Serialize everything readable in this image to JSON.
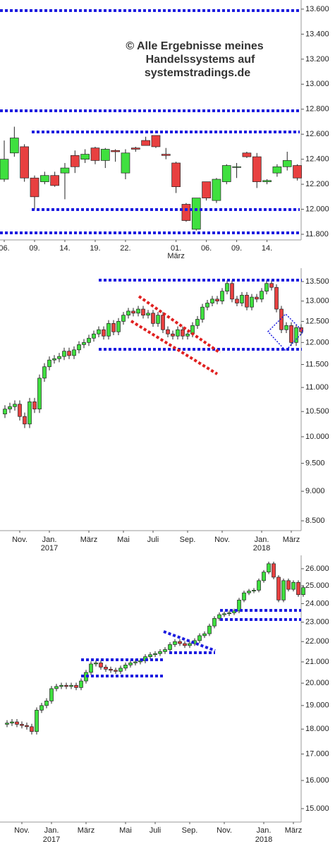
{
  "chart_data": [
    {
      "type": "candlestick",
      "watermark": [
        "© Alle Ergebnisse meines",
        "Handelssystems auf",
        "systemstradings.de"
      ],
      "categories": [
        "06.",
        null,
        null,
        "09.",
        null,
        null,
        "14.",
        null,
        null,
        "19.",
        null,
        null,
        "22.",
        null,
        null,
        null,
        null,
        "01.",
        null,
        null,
        "06.",
        null,
        null,
        "09.",
        null,
        null,
        "14.",
        null,
        null,
        null
      ],
      "sublabels": [
        null,
        null,
        null,
        null,
        null,
        null,
        null,
        null,
        null,
        null,
        null,
        null,
        null,
        null,
        null,
        null,
        null,
        "März",
        null,
        null,
        null,
        null,
        null,
        null,
        null,
        null,
        null,
        null,
        null,
        null
      ],
      "open": [
        12240,
        12450,
        12500,
        12250,
        12220,
        12270,
        12290,
        12430,
        12400,
        12490,
        12390,
        12470,
        12290,
        12490,
        12550,
        12590,
        12440,
        12370,
        12040,
        11840,
        12220,
        12070,
        12220,
        12340,
        12450,
        12420,
        12220,
        12290,
        12340,
        12350
      ],
      "high": [
        12550,
        12660,
        12520,
        12270,
        12300,
        12300,
        12370,
        12470,
        12480,
        12500,
        12490,
        12480,
        12480,
        12500,
        12580,
        12590,
        12490,
        12380,
        12050,
        12090,
        12220,
        12250,
        12360,
        12370,
        12460,
        12450,
        12240,
        12360,
        12460,
        12360
      ],
      "low": [
        12220,
        12420,
        12220,
        12000,
        12200,
        12180,
        12080,
        12290,
        12370,
        12360,
        12330,
        12380,
        12240,
        12460,
        12520,
        12490,
        12400,
        12130,
        11900,
        11830,
        12070,
        12050,
        12200,
        12250,
        12410,
        12170,
        12200,
        12260,
        12310,
        12230
      ],
      "close": [
        12400,
        12570,
        12250,
        12100,
        12270,
        12190,
        12330,
        12340,
        12440,
        12390,
        12480,
        12460,
        12450,
        12480,
        12510,
        12500,
        12430,
        12180,
        11910,
        12090,
        12090,
        12240,
        12350,
        12340,
        12420,
        12220,
        12230,
        12340,
        12390,
        12250
      ],
      "colors": {
        "up": "#3fe03f",
        "down": "#e84040"
      },
      "log_scale": false,
      "ylim": [
        11755,
        13673
      ],
      "yticks": [
        {
          "value": 11800,
          "label": "11.800"
        },
        {
          "value": 12000,
          "label": "12.000"
        },
        {
          "value": 12200,
          "label": "12.200"
        },
        {
          "value": 12400,
          "label": "12.400"
        },
        {
          "value": 12600,
          "label": "12.600"
        },
        {
          "value": 12800,
          "label": "12.800"
        },
        {
          "value": 13000,
          "label": "13.000"
        },
        {
          "value": 13200,
          "label": "13.200"
        },
        {
          "value": 13400,
          "label": "13.400"
        },
        {
          "value": 13600,
          "label": "13.600"
        }
      ]
    },
    {
      "type": "candlestick",
      "categories": [
        null,
        null,
        null,
        "Nov.",
        null,
        null,
        null,
        null,
        null,
        "Jan.",
        null,
        null,
        null,
        null,
        null,
        null,
        null,
        "März",
        null,
        null,
        null,
        null,
        null,
        null,
        "Mai",
        null,
        null,
        null,
        null,
        null,
        "Juli",
        null,
        null,
        null,
        null,
        null,
        null,
        "Sep.",
        null,
        null,
        null,
        null,
        null,
        null,
        "Nov.",
        null,
        null,
        null,
        null,
        null,
        null,
        null,
        "Jan.",
        null,
        null,
        null,
        null,
        null,
        "März",
        null,
        null
      ],
      "sublabels": [
        null,
        null,
        null,
        null,
        null,
        null,
        null,
        null,
        null,
        "2017",
        null,
        null,
        null,
        null,
        null,
        null,
        null,
        null,
        null,
        null,
        null,
        null,
        null,
        null,
        null,
        null,
        null,
        null,
        null,
        null,
        null,
        null,
        null,
        null,
        null,
        null,
        null,
        null,
        null,
        null,
        null,
        null,
        null,
        null,
        null,
        null,
        null,
        null,
        null,
        null,
        null,
        null,
        "2018",
        null,
        null,
        null,
        null,
        null,
        null,
        null,
        null
      ],
      "open": [
        10450,
        10550,
        10600,
        10650,
        10400,
        10250,
        10700,
        10550,
        11200,
        11450,
        11600,
        11630,
        11680,
        11800,
        11700,
        11830,
        11950,
        12000,
        12100,
        12200,
        12300,
        12150,
        12450,
        12250,
        12500,
        12650,
        12750,
        12700,
        12800,
        12650,
        12700,
        12450,
        12650,
        12300,
        12200,
        12150,
        12300,
        12150,
        12200,
        12400,
        12550,
        12850,
        12950,
        13050,
        13000,
        13250,
        13450,
        13050,
        12950,
        13150,
        12850,
        13100,
        13050,
        13250,
        13450,
        13350,
        12800,
        12300,
        12400,
        12000,
        12350
      ],
      "high": [
        10630,
        10680,
        10730,
        10730,
        10480,
        10780,
        10780,
        11280,
        11530,
        11680,
        11710,
        11760,
        11880,
        11880,
        11910,
        12030,
        12080,
        12180,
        12280,
        12380,
        12380,
        12530,
        12530,
        12580,
        12730,
        12830,
        12830,
        12880,
        12880,
        12780,
        12780,
        12730,
        12730,
        12380,
        12280,
        12380,
        12380,
        12280,
        12480,
        12630,
        12930,
        13030,
        13130,
        13130,
        13330,
        13530,
        13530,
        13130,
        13230,
        13230,
        13180,
        13180,
        13330,
        13530,
        13530,
        13430,
        12880,
        12480,
        12480,
        12430,
        12430
      ],
      "low": [
        10370,
        10470,
        10520,
        10320,
        10170,
        10170,
        10470,
        10470,
        11120,
        11370,
        11520,
        11550,
        11600,
        11620,
        11620,
        11750,
        11870,
        11920,
        12020,
        12120,
        12070,
        12070,
        12170,
        12170,
        12420,
        12570,
        12620,
        12620,
        12570,
        12570,
        12370,
        12370,
        12220,
        12120,
        12070,
        12070,
        12070,
        12070,
        12120,
        12320,
        12470,
        12770,
        12870,
        12920,
        12920,
        13170,
        12970,
        12870,
        12870,
        12770,
        12770,
        12970,
        12970,
        13170,
        13270,
        12720,
        12220,
        12220,
        11920,
        11920,
        12170
      ],
      "close": [
        10550,
        10600,
        10650,
        10400,
        10250,
        10700,
        10550,
        11200,
        11450,
        11600,
        11630,
        11680,
        11800,
        11700,
        11830,
        11950,
        12000,
        12100,
        12200,
        12300,
        12150,
        12450,
        12250,
        12500,
        12650,
        12750,
        12700,
        12800,
        12650,
        12700,
        12450,
        12650,
        12300,
        12200,
        12150,
        12300,
        12150,
        12200,
        12400,
        12550,
        12850,
        12950,
        13050,
        13000,
        13250,
        13450,
        13050,
        12950,
        13150,
        12850,
        13100,
        13050,
        13250,
        13450,
        13350,
        12800,
        12300,
        12400,
        12000,
        12350,
        12250
      ],
      "colors": {
        "up": "#3fe03f",
        "down": "#e84040"
      },
      "log_scale": true,
      "ylim": [
        8340,
        13855
      ],
      "yticks": [
        {
          "value": 8500,
          "label": "8.500"
        },
        {
          "value": 9000,
          "label": "9.000"
        },
        {
          "value": 9500,
          "label": "9.500"
        },
        {
          "value": 10000,
          "label": "10.000"
        },
        {
          "value": 10500,
          "label": "10.500"
        },
        {
          "value": 11000,
          "label": "11.000"
        },
        {
          "value": 11500,
          "label": "11.500"
        },
        {
          "value": 12000,
          "label": "12.000"
        },
        {
          "value": 12500,
          "label": "12.500"
        },
        {
          "value": 13000,
          "label": "13.000"
        },
        {
          "value": 13500,
          "label": "13.500"
        }
      ]
    },
    {
      "type": "candlestick",
      "categories": [
        null,
        null,
        null,
        "Nov.",
        null,
        null,
        null,
        null,
        null,
        "Jan.",
        null,
        null,
        null,
        null,
        null,
        null,
        "März",
        null,
        null,
        null,
        null,
        null,
        null,
        null,
        "Mai",
        null,
        null,
        null,
        null,
        null,
        "Juli",
        null,
        null,
        null,
        null,
        null,
        null,
        "Sep.",
        null,
        null,
        null,
        null,
        null,
        null,
        "Nov.",
        null,
        null,
        null,
        null,
        null,
        null,
        null,
        "Jan.",
        null,
        null,
        null,
        null,
        null,
        "März",
        null,
        null
      ],
      "sublabels": [
        null,
        null,
        null,
        null,
        null,
        null,
        null,
        null,
        null,
        "2017",
        null,
        null,
        null,
        null,
        null,
        null,
        null,
        null,
        null,
        null,
        null,
        null,
        null,
        null,
        null,
        null,
        null,
        null,
        null,
        null,
        null,
        null,
        null,
        null,
        null,
        null,
        null,
        null,
        null,
        null,
        null,
        null,
        null,
        null,
        null,
        null,
        null,
        null,
        null,
        null,
        null,
        null,
        "2018",
        null,
        null,
        null,
        null,
        null,
        null,
        null,
        null
      ],
      "open": [
        18200,
        18250,
        18300,
        18200,
        18150,
        18100,
        17900,
        18800,
        19000,
        19200,
        19750,
        19850,
        19900,
        19850,
        19900,
        19800,
        20100,
        20500,
        20900,
        20950,
        20750,
        20650,
        20600,
        20550,
        20700,
        20850,
        20950,
        21000,
        21050,
        21250,
        21350,
        21400,
        21500,
        21600,
        21850,
        22000,
        21900,
        21800,
        21900,
        22050,
        22300,
        22400,
        22800,
        23200,
        23400,
        23450,
        23500,
        23600,
        24200,
        24600,
        24700,
        24750,
        25300,
        25800,
        26300,
        25500,
        24200,
        25300,
        24800,
        25200,
        24500
      ],
      "high": [
        18370,
        18420,
        18420,
        18320,
        18270,
        18220,
        18920,
        19120,
        19320,
        19870,
        19970,
        20020,
        20020,
        20020,
        20020,
        20220,
        20620,
        21020,
        21070,
        21070,
        20870,
        20770,
        20720,
        20820,
        20970,
        21070,
        21120,
        21170,
        21370,
        21470,
        21520,
        21620,
        21720,
        21970,
        22120,
        22120,
        22020,
        22020,
        22170,
        22420,
        22520,
        22920,
        23320,
        23520,
        23570,
        23620,
        23720,
        24320,
        24720,
        24820,
        24870,
        25420,
        25920,
        26420,
        26420,
        25620,
        25420,
        25420,
        25320,
        25320,
        25020
      ],
      "low": [
        18080,
        18130,
        18080,
        18030,
        17980,
        17780,
        17780,
        18680,
        18880,
        19080,
        19630,
        19730,
        19730,
        19730,
        19680,
        19680,
        19980,
        20380,
        20780,
        20630,
        20530,
        20480,
        20430,
        20430,
        20580,
        20730,
        20830,
        20880,
        20930,
        21130,
        21230,
        21280,
        21380,
        21480,
        21730,
        21780,
        21680,
        21680,
        21780,
        21930,
        22180,
        22280,
        22680,
        23080,
        23280,
        23330,
        23380,
        23480,
        24080,
        24480,
        24580,
        24630,
        25180,
        25680,
        25380,
        24080,
        24080,
        24680,
        24680,
        24380,
        24380
      ],
      "close": [
        18250,
        18300,
        18200,
        18150,
        18100,
        17900,
        18800,
        19000,
        19200,
        19750,
        19850,
        19900,
        19850,
        19900,
        19800,
        20100,
        20500,
        20900,
        20950,
        20750,
        20650,
        20600,
        20550,
        20700,
        20850,
        20950,
        21000,
        21050,
        21250,
        21350,
        21400,
        21500,
        21600,
        21850,
        22000,
        21900,
        21800,
        21900,
        22050,
        22300,
        22400,
        22800,
        23200,
        23400,
        23450,
        23500,
        23600,
        24200,
        24600,
        24700,
        24750,
        25300,
        25800,
        26300,
        25500,
        24200,
        25300,
        24800,
        25200,
        24500,
        24900
      ],
      "colors": {
        "up": "#3fe03f",
        "down": "#e84040"
      },
      "log_scale": true,
      "ylim": [
        14545,
        26810
      ],
      "yticks": [
        {
          "value": 15000,
          "label": "15.000"
        },
        {
          "value": 16000,
          "label": "16.000"
        },
        {
          "value": 17000,
          "label": "17.000"
        },
        {
          "value": 18000,
          "label": "18.000"
        },
        {
          "value": 19000,
          "label": "19.000"
        },
        {
          "value": 20000,
          "label": "20.000"
        },
        {
          "value": 21000,
          "label": "21.000"
        },
        {
          "value": 22000,
          "label": "22.000"
        },
        {
          "value": 23000,
          "label": "23.000"
        },
        {
          "value": 24000,
          "label": "24.000"
        },
        {
          "value": 25000,
          "label": "25.000"
        },
        {
          "value": 26000,
          "label": "26.000"
        }
      ]
    }
  ]
}
